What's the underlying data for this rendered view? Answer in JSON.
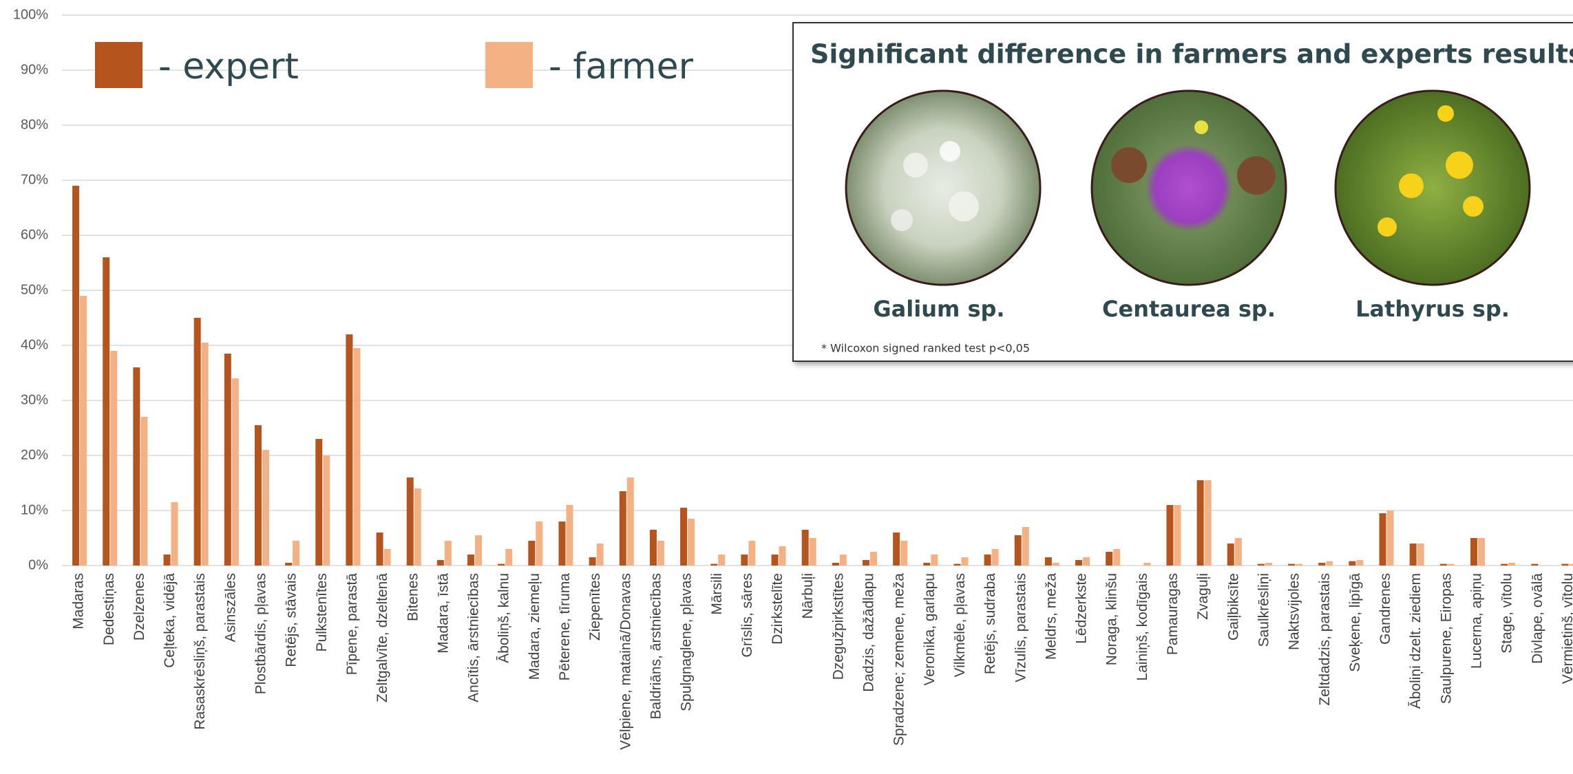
{
  "chart_data": {
    "type": "bar",
    "categories": [
      "Madaras",
      "Dedestiņas",
      "Dzelzenes",
      "Ceļteka, vidējā",
      "Rasaskrēsliņš, parastais",
      "Asinszāles",
      "Plostbārdis, pļavas",
      "Retējs, stāvais",
      "Pulkstenītes",
      "Pīpene, parastā",
      "Zeltgalvīte, dzeltenā",
      "Bitenes",
      "Madara, īstā",
      "Ancītis, ārstniecības",
      "Āboliņš, kalnu",
      "Madara, ziemeļu",
      "Pēterene, tīruma",
      "Ziepenītes",
      "Vēlpiene, matainā/Donavas",
      "Baldriāns, ārstniecības",
      "Spulgnaglene, pļavas",
      "Mārsili",
      "Grīslis, sāres",
      "Dzirkstelīte",
      "Nārbuļi",
      "Dzegužpirkstītes",
      "Dadzis, dažādlapu",
      "Spradzene; zemene, meža",
      "Veronika, garlapu",
      "Vilkmēle, pļavas",
      "Retējs, sudraba",
      "Vīzulis, parastais",
      "Meldrs, meža",
      "Lēdzerkste",
      "Noraga, klinšu",
      "Lainiņš, kodīgais",
      "Pamauragas",
      "Zvaguļi",
      "Gaiļbiksīte",
      "Saulkrēsliņi",
      "Naktsvijoles",
      "Zeltdadzis, parastais",
      "Sveķene, lipīgā",
      "Gandrenes",
      "Āboliņi dzelt. ziediem",
      "Saulpurene, Eiropas",
      "Lucerna, apiņu",
      "Stage, vītolu",
      "Divlape, ovālā",
      "Vērmietiņš, vītolu"
    ],
    "series": [
      {
        "name": "- expert",
        "color": "#b5541c",
        "values": [
          69,
          56,
          36,
          2,
          45,
          38.5,
          25.5,
          0.5,
          23,
          42,
          6,
          16,
          1,
          2,
          0.3,
          4.5,
          8,
          1.5,
          13.5,
          6.5,
          10.5,
          0.3,
          2,
          2,
          6.5,
          0.5,
          1,
          6,
          0.5,
          0.3,
          2,
          5.5,
          1.5,
          1,
          2.5,
          0,
          11,
          15.5,
          4,
          0.3,
          0.3,
          0.5,
          0.8,
          9.5,
          4,
          0.3,
          5,
          0.3,
          0.3,
          0.3
        ]
      },
      {
        "name": "- farmer",
        "color": "#f4b183",
        "values": [
          49,
          39,
          27,
          11.5,
          40.5,
          34,
          21,
          4.5,
          20,
          39.5,
          3,
          14,
          4.5,
          5.5,
          3,
          8,
          11,
          4,
          16,
          4.5,
          8.5,
          2,
          4.5,
          3.5,
          5,
          2,
          2.5,
          4.5,
          2,
          1.5,
          3,
          7,
          0.5,
          1.5,
          3,
          0.5,
          11,
          15.5,
          5,
          0.5,
          0.3,
          0.8,
          1,
          10,
          4,
          0.3,
          5,
          0.5,
          0,
          0.3
        ]
      }
    ],
    "ylim": [
      0,
      100
    ],
    "yticks": [
      {
        "value": 0,
        "label": "0%"
      },
      {
        "value": 10,
        "label": "10%"
      },
      {
        "value": 20,
        "label": "20%"
      },
      {
        "value": 30,
        "label": "30%"
      },
      {
        "value": 40,
        "label": "40%"
      },
      {
        "value": 50,
        "label": "50%"
      },
      {
        "value": 60,
        "label": "60%"
      },
      {
        "value": 70,
        "label": "70%"
      },
      {
        "value": 80,
        "label": "80%"
      },
      {
        "value": 90,
        "label": "90%"
      },
      {
        "value": 100,
        "label": "100%"
      }
    ],
    "grid": true
  },
  "panel": {
    "title": "Significant difference in farmers and experts results",
    "items": [
      {
        "caption": "Galium sp."
      },
      {
        "caption": "Centaurea sp."
      },
      {
        "caption": "Lathyrus sp."
      }
    ],
    "footnote": "* Wilcoxon signed ranked test p<0,05"
  }
}
